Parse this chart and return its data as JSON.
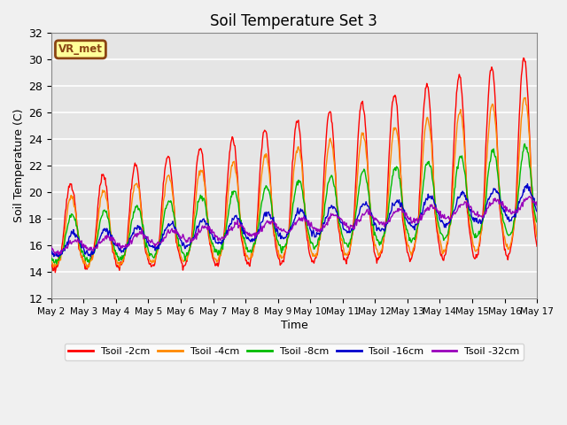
{
  "title": "Soil Temperature Set 3",
  "xlabel": "Time",
  "ylabel": "Soil Temperature (C)",
  "ylim": [
    12,
    32
  ],
  "yticks": [
    12,
    14,
    16,
    18,
    20,
    22,
    24,
    26,
    28,
    30,
    32
  ],
  "plot_bg": "#e5e5e5",
  "fig_bg": "#f0f0f0",
  "grid_color": "#ffffff",
  "annotation_text": "VR_met",
  "annotation_bg": "#ffff99",
  "annotation_border": "#8b4513",
  "legend_entries": [
    "Tsoil -2cm",
    "Tsoil -4cm",
    "Tsoil -8cm",
    "Tsoil -16cm",
    "Tsoil -32cm"
  ],
  "line_colors": [
    "#ff0000",
    "#ff8800",
    "#00bb00",
    "#0000cc",
    "#9900bb"
  ],
  "line_width": 1.0,
  "n_days": 15,
  "points_per_day": 48,
  "start_day": 2,
  "base_temp": 15.8
}
